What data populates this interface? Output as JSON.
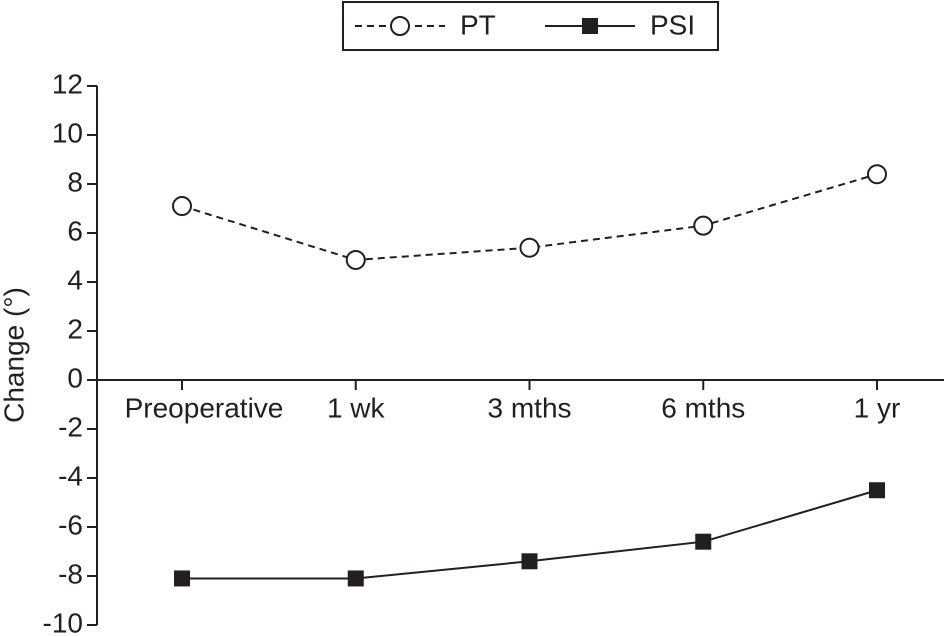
{
  "chart_data": {
    "type": "line",
    "y_label": "Change (°)",
    "categories": [
      "Preoperative",
      "1 wk",
      "3 mths",
      "6 mths",
      "1 yr"
    ],
    "series": [
      {
        "name": "PT",
        "color": "#231f20",
        "linestyle": "dashed",
        "marker": "open-circle",
        "values": [
          7.1,
          4.9,
          5.4,
          6.3,
          8.4
        ]
      },
      {
        "name": "PSI",
        "color": "#231f20",
        "linestyle": "solid",
        "marker": "filled-square",
        "values": [
          -8.1,
          -8.1,
          -7.4,
          -6.6,
          -4.5
        ]
      }
    ],
    "ylim": [
      -10,
      12
    ],
    "yticks": [
      -10,
      -8,
      -6,
      -4,
      -2,
      0,
      2,
      4,
      6,
      8,
      10,
      12
    ],
    "legend": "top"
  }
}
